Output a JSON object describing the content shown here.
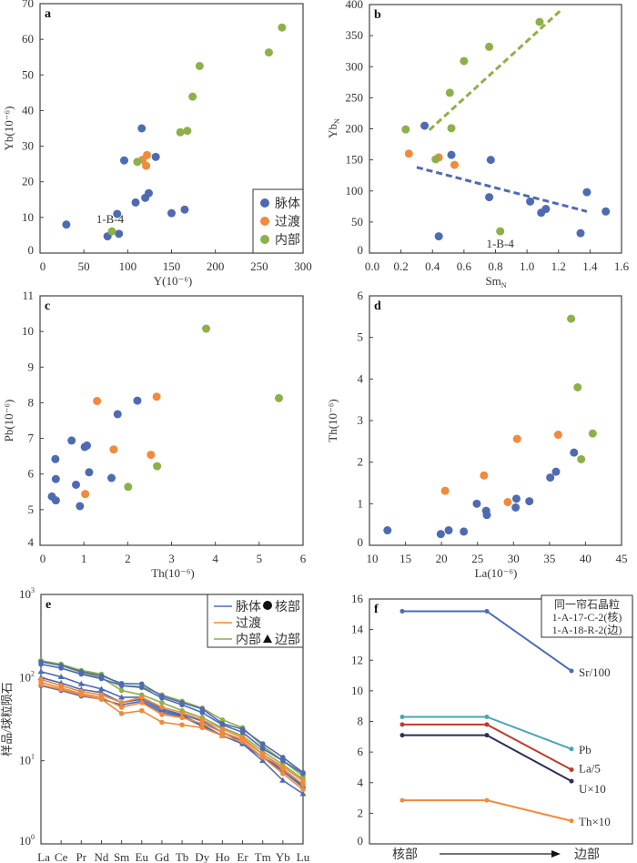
{
  "colors": {
    "vein": "#4e6bb2",
    "transition": "#f08a3c",
    "inner": "#8db04a"
  },
  "legend_groups": [
    "脉体",
    "过渡",
    "内部"
  ],
  "chart_data": [
    {
      "id": "a",
      "panel_label": "a",
      "type": "scatter",
      "xlabel": "Y(10⁻⁶)",
      "ylabel": "Yb(10⁻⁶)",
      "xlim": [
        0,
        300
      ],
      "ylim": [
        0,
        70
      ],
      "xticks": [
        "0",
        "50",
        "100",
        "150",
        "200",
        "250",
        "300"
      ],
      "yticks": [
        "0",
        "10",
        "20",
        "30",
        "40",
        "50",
        "60",
        "70"
      ],
      "legend": "bottom-right",
      "annotation": {
        "text": "1-B-4",
        "x": 82,
        "y": 6.1
      },
      "series": [
        {
          "name": "脉体",
          "color": "#4e6bb2",
          "points": [
            [
              30,
              8
            ],
            [
              77,
              4.7
            ],
            [
              88,
              11
            ],
            [
              90,
              5.4
            ],
            [
              96,
              26
            ],
            [
              109,
              14.2
            ],
            [
              116,
              35
            ],
            [
              120,
              15.5
            ],
            [
              124,
              16.8
            ],
            [
              132,
              27
            ],
            [
              150,
              11.2
            ],
            [
              165,
              12.2
            ]
          ]
        },
        {
          "name": "过渡",
          "color": "#f08a3c",
          "points": [
            [
              117,
              26.2
            ],
            [
              122,
              27.5
            ],
            [
              121,
              24.5
            ]
          ]
        },
        {
          "name": "内部",
          "color": "#8db04a",
          "points": [
            [
              82,
              6.1
            ],
            [
              111,
              25.6
            ],
            [
              160,
              33.9
            ],
            [
              168,
              34.3
            ],
            [
              174,
              43.9
            ],
            [
              182,
              52.5
            ],
            [
              261,
              56.3
            ],
            [
              276,
              63.3
            ]
          ]
        }
      ]
    },
    {
      "id": "b",
      "panel_label": "b",
      "type": "scatter",
      "xlabel": {
        "main": "Sm",
        "sub": "N"
      },
      "ylabel": {
        "main": "Yb",
        "sub": "N"
      },
      "xlim": [
        0,
        1.6
      ],
      "ylim": [
        0,
        400
      ],
      "xticks": [
        "0.0",
        "0.2",
        "0.4",
        "0.6",
        "0.8",
        "1.0",
        "1.2",
        "1.4",
        "1.6"
      ],
      "yticks": [
        "0",
        "50",
        "100",
        "150",
        "200",
        "250",
        "300",
        "350",
        "400"
      ],
      "annotation": {
        "text": "1-B-4",
        "x": 0.83,
        "y": 35
      },
      "trendlines": [
        {
          "color": "#8db04a",
          "from": [
            0.38,
            198
          ],
          "to": [
            1.22,
            392
          ]
        },
        {
          "color": "#4e6bb2",
          "from": [
            0.3,
            138
          ],
          "to": [
            1.38,
            67
          ]
        }
      ],
      "series": [
        {
          "color": "#4e6bb2",
          "points": [
            [
              0.35,
              205
            ],
            [
              0.44,
              27
            ],
            [
              0.52,
              158
            ],
            [
              0.76,
              90
            ],
            [
              0.77,
              150
            ],
            [
              1.02,
              83
            ],
            [
              1.09,
              65
            ],
            [
              1.12,
              71
            ],
            [
              1.34,
              32
            ],
            [
              1.38,
              98
            ],
            [
              1.5,
              67
            ]
          ]
        },
        {
          "color": "#f08a3c",
          "points": [
            [
              0.25,
              160
            ],
            [
              0.44,
              154
            ],
            [
              0.54,
              142
            ]
          ]
        },
        {
          "color": "#8db04a",
          "points": [
            [
              0.23,
              199
            ],
            [
              0.42,
              151
            ],
            [
              0.51,
              258
            ],
            [
              0.52,
              201
            ],
            [
              0.6,
              309
            ],
            [
              0.76,
              332
            ],
            [
              1.08,
              372
            ],
            [
              0.83,
              35
            ]
          ]
        }
      ]
    },
    {
      "id": "c",
      "panel_label": "c",
      "type": "scatter",
      "xlabel": "Th(10⁻⁶)",
      "ylabel": "Pb(10⁻⁶)",
      "xlim": [
        0,
        6
      ],
      "ylim": [
        4,
        11
      ],
      "xticks": [
        "0",
        "1",
        "2",
        "3",
        "4",
        "5",
        "6"
      ],
      "yticks": [
        "4",
        "5",
        "6",
        "7",
        "8",
        "9",
        "10",
        "11"
      ],
      "series": [
        {
          "color": "#4e6bb2",
          "points": [
            [
              0.27,
              5.37
            ],
            [
              0.35,
              6.42
            ],
            [
              0.36,
              5.86
            ],
            [
              0.36,
              5.26
            ],
            [
              0.72,
              6.94
            ],
            [
              0.82,
              5.7
            ],
            [
              0.91,
              5.1
            ],
            [
              1.02,
              6.76
            ],
            [
              1.07,
              6.8
            ],
            [
              1.12,
              6.05
            ],
            [
              1.63,
              5.89
            ],
            [
              1.77,
              7.68
            ],
            [
              2.22,
              8.06
            ]
          ]
        },
        {
          "color": "#f08a3c",
          "points": [
            [
              1.03,
              5.44
            ],
            [
              1.3,
              8.05
            ],
            [
              1.68,
              6.69
            ],
            [
              2.53,
              6.54
            ],
            [
              2.66,
              8.17
            ]
          ]
        },
        {
          "color": "#8db04a",
          "points": [
            [
              2.01,
              5.64
            ],
            [
              2.67,
              6.22
            ],
            [
              3.79,
              10.08
            ],
            [
              5.45,
              8.13
            ]
          ]
        }
      ]
    },
    {
      "id": "d",
      "panel_label": "d",
      "type": "scatter",
      "xlabel": "La(10⁻⁶)",
      "ylabel": "Th(10⁻⁶)",
      "xlim": [
        10,
        45
      ],
      "ylim": [
        0,
        6
      ],
      "xticks": [
        "10",
        "15",
        "20",
        "25",
        "30",
        "35",
        "40",
        "45"
      ],
      "yticks": [
        "0",
        "1",
        "2",
        "3",
        "4",
        "5",
        "6"
      ],
      "series": [
        {
          "color": "#4e6bb2",
          "points": [
            [
              12.5,
              0.36
            ],
            [
              19.9,
              0.27
            ],
            [
              21,
              0.36
            ],
            [
              23.1,
              0.33
            ],
            [
              24.9,
              1.0
            ],
            [
              26.2,
              0.83
            ],
            [
              26.3,
              0.73
            ],
            [
              30.3,
              0.91
            ],
            [
              30.4,
              1.12
            ],
            [
              32.2,
              1.06
            ],
            [
              35.1,
              1.63
            ],
            [
              35.9,
              1.77
            ],
            [
              38.4,
              2.23
            ]
          ]
        },
        {
          "color": "#f08a3c",
          "points": [
            [
              20.5,
              1.31
            ],
            [
              25.9,
              1.68
            ],
            [
              29.2,
              1.04
            ],
            [
              30.5,
              2.56
            ],
            [
              36.2,
              2.66
            ]
          ]
        },
        {
          "color": "#8db04a",
          "points": [
            [
              38,
              5.45
            ],
            [
              38.9,
              3.8
            ],
            [
              39.4,
              2.07
            ],
            [
              41,
              2.69
            ]
          ]
        }
      ]
    },
    {
      "id": "e",
      "panel_label": "e",
      "type": "line",
      "ylabel": "样品/球粒陨石",
      "yscale": "log",
      "ylim": [
        1,
        1000
      ],
      "yticks": [
        {
          "base": "10",
          "exp": "0"
        },
        {
          "base": "10",
          "exp": "1"
        },
        {
          "base": "10",
          "exp": "2"
        },
        {
          "base": "10",
          "exp": "3"
        }
      ],
      "categories": [
        "La",
        "Ce",
        "Pr",
        "Nd",
        "Sm",
        "Eu",
        "Gd",
        "Tb",
        "Dy",
        "Ho",
        "Er",
        "Tm",
        "Yb",
        "Lu"
      ],
      "legend": {
        "position": "top-right",
        "lines": [
          {
            "label": "脉体",
            "color": "#4e6bb2"
          },
          {
            "label": "过渡",
            "color": "#f08a3c"
          },
          {
            "label": "内部",
            "color": "#8db04a"
          }
        ],
        "markers": [
          {
            "label": "核部",
            "shape": "circle"
          },
          {
            "label": "边部",
            "shape": "triangle"
          }
        ]
      },
      "series": [
        {
          "group": "内部",
          "color": "#8db04a",
          "marker": "circle",
          "values": [
            160,
            145,
            122,
            110,
            80,
            78,
            62,
            52,
            43,
            31,
            25,
            15,
            10,
            6.5
          ]
        },
        {
          "group": "内部",
          "color": "#8db04a",
          "marker": "circle",
          "values": [
            158,
            140,
            115,
            100,
            70,
            62,
            50,
            40,
            33,
            25,
            20,
            13,
            9,
            6
          ]
        },
        {
          "group": "脉体",
          "color": "#4e6bb2",
          "marker": "circle",
          "values": [
            155,
            140,
            118,
            105,
            85,
            84,
            60,
            50,
            42,
            28,
            24,
            16,
            11,
            7.2
          ]
        },
        {
          "group": "脉体",
          "color": "#4e6bb2",
          "marker": "circle",
          "values": [
            145,
            130,
            110,
            97,
            80,
            76,
            57,
            47,
            38,
            27,
            22,
            14,
            10,
            7
          ]
        },
        {
          "group": "脉体",
          "color": "#4e6bb2",
          "marker": "triangle",
          "values": [
            118,
            102,
            84,
            73,
            58,
            58,
            42,
            36,
            30,
            22,
            17,
            11,
            8,
            5
          ]
        },
        {
          "group": "脉体",
          "color": "#4e6bb2",
          "marker": "triangle",
          "values": [
            100,
            86,
            72,
            66,
            50,
            55,
            40,
            35,
            27,
            20,
            16,
            10,
            5.8,
            4
          ]
        },
        {
          "group": "脉体",
          "color": "#4e6bb2",
          "marker": "circle",
          "values": [
            80,
            70,
            60,
            55,
            47,
            52,
            38,
            34,
            26,
            20,
            16,
            11,
            7.5,
            4.8
          ]
        },
        {
          "group": "过渡",
          "color": "#f08a3c",
          "marker": "circle",
          "values": [
            95,
            80,
            68,
            62,
            50,
            58,
            44,
            38,
            31,
            24,
            19,
            12,
            8.5,
            5.7
          ]
        },
        {
          "group": "过渡",
          "color": "#f08a3c",
          "marker": "circle",
          "values": [
            88,
            75,
            64,
            58,
            44,
            50,
            36,
            33,
            28,
            22,
            18,
            12,
            8,
            5.2
          ]
        },
        {
          "group": "过渡",
          "color": "#f08a3c",
          "marker": "circle",
          "values": [
            82,
            72,
            62,
            55,
            37,
            40,
            29,
            27,
            25,
            20,
            17,
            11,
            7,
            4.5
          ]
        }
      ]
    },
    {
      "id": "f",
      "panel_label": "f",
      "type": "line",
      "ylim": [
        0,
        16
      ],
      "yticks": [
        "0",
        "2",
        "4",
        "6",
        "8",
        "10",
        "12",
        "14",
        "16"
      ],
      "x_start_label": "核部",
      "x_end_label": "边部",
      "legend": {
        "position": "top-right",
        "lines": [
          "同一帘石晶粒",
          "1-A-17-C-2(核)",
          "1-A-18-R-2(边)"
        ]
      },
      "series": [
        {
          "name": "Sr/100",
          "color": "#4e6bb2",
          "values": [
            15.2,
            15.2,
            11.3
          ]
        },
        {
          "name": "Pb",
          "color": "#4aa5b0",
          "values": [
            8.3,
            8.3,
            6.2
          ]
        },
        {
          "name": "La/5",
          "color": "#c0392b",
          "values": [
            7.8,
            7.8,
            4.85
          ]
        },
        {
          "name": "U×10",
          "color": "#2c2f54",
          "values": [
            7.1,
            7.1,
            4.1
          ]
        },
        {
          "name": "Th×10",
          "color": "#f5883a",
          "values": [
            2.85,
            2.85,
            1.5
          ]
        }
      ]
    }
  ]
}
